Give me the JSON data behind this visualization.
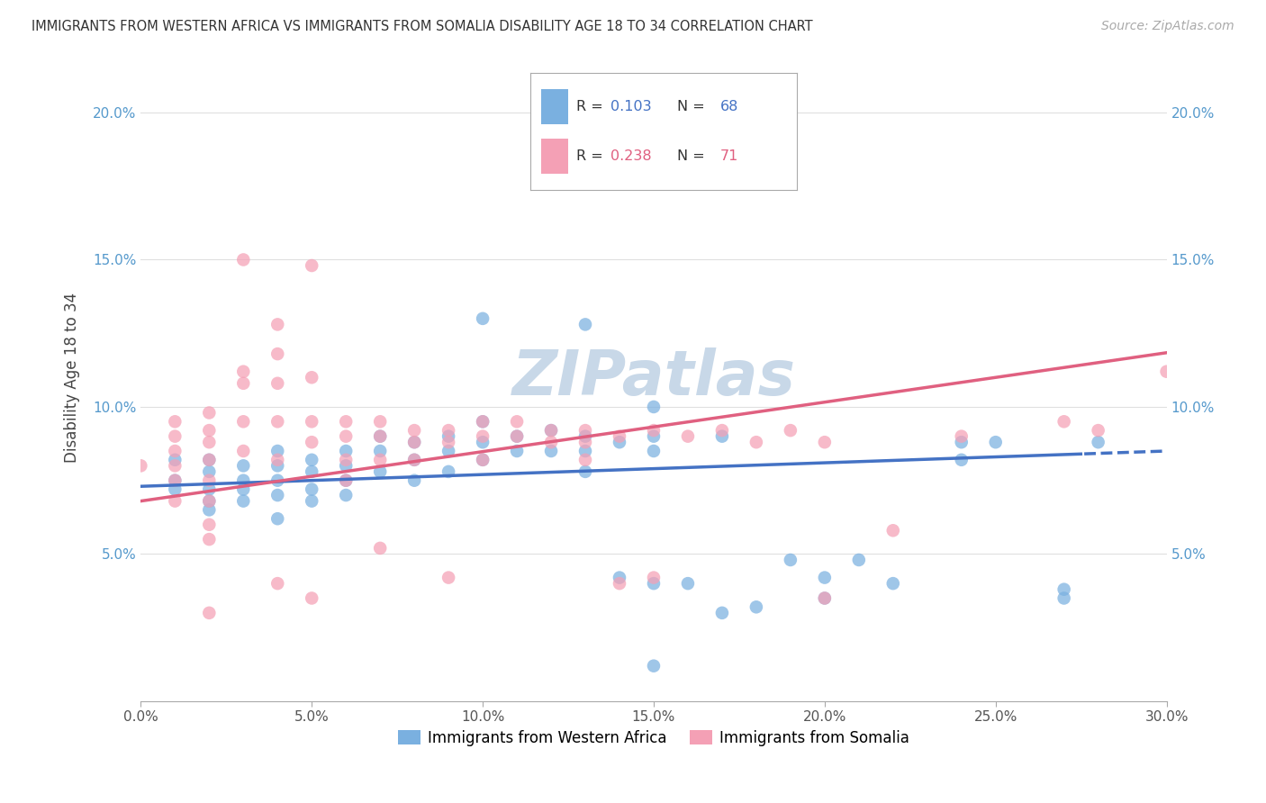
{
  "title": "IMMIGRANTS FROM WESTERN AFRICA VS IMMIGRANTS FROM SOMALIA DISABILITY AGE 18 TO 34 CORRELATION CHART",
  "source": "Source: ZipAtlas.com",
  "ylabel": "Disability Age 18 to 34",
  "xlim": [
    0.0,
    0.3
  ],
  "ylim": [
    0.0,
    0.22
  ],
  "xticks": [
    0.0,
    0.05,
    0.1,
    0.15,
    0.2,
    0.25,
    0.3
  ],
  "yticks": [
    0.0,
    0.05,
    0.1,
    0.15,
    0.2
  ],
  "western_africa_color": "#7ab0e0",
  "somalia_color": "#f4a0b5",
  "western_africa_R": 0.103,
  "western_africa_N": 68,
  "somalia_R": 0.238,
  "somalia_N": 71,
  "line_blue": "#4472c4",
  "line_pink": "#e06080",
  "watermark": "ZIPatlas",
  "watermark_color": "#c8d8e8",
  "background_color": "#ffffff",
  "grid_color": "#e0e0e0",
  "western_africa_x": [
    0.01,
    0.01,
    0.01,
    0.02,
    0.02,
    0.02,
    0.02,
    0.02,
    0.03,
    0.03,
    0.03,
    0.03,
    0.04,
    0.04,
    0.04,
    0.04,
    0.04,
    0.05,
    0.05,
    0.05,
    0.05,
    0.06,
    0.06,
    0.06,
    0.06,
    0.07,
    0.07,
    0.07,
    0.08,
    0.08,
    0.08,
    0.09,
    0.09,
    0.09,
    0.1,
    0.1,
    0.1,
    0.11,
    0.11,
    0.12,
    0.12,
    0.13,
    0.13,
    0.13,
    0.14,
    0.14,
    0.15,
    0.15,
    0.15,
    0.16,
    0.17,
    0.17,
    0.18,
    0.19,
    0.2,
    0.2,
    0.21,
    0.22,
    0.24,
    0.24,
    0.25,
    0.27,
    0.27,
    0.28,
    0.15,
    0.13,
    0.1,
    0.15
  ],
  "western_africa_y": [
    0.075,
    0.082,
    0.072,
    0.078,
    0.082,
    0.072,
    0.068,
    0.065,
    0.08,
    0.075,
    0.072,
    0.068,
    0.085,
    0.08,
    0.075,
    0.07,
    0.062,
    0.082,
    0.078,
    0.072,
    0.068,
    0.085,
    0.08,
    0.075,
    0.07,
    0.09,
    0.085,
    0.078,
    0.088,
    0.082,
    0.075,
    0.09,
    0.085,
    0.078,
    0.095,
    0.088,
    0.082,
    0.09,
    0.085,
    0.092,
    0.085,
    0.09,
    0.085,
    0.078,
    0.088,
    0.042,
    0.09,
    0.085,
    0.04,
    0.04,
    0.09,
    0.03,
    0.032,
    0.048,
    0.042,
    0.035,
    0.048,
    0.04,
    0.088,
    0.082,
    0.088,
    0.035,
    0.038,
    0.088,
    0.1,
    0.128,
    0.13,
    0.012
  ],
  "somalia_x": [
    0.0,
    0.01,
    0.01,
    0.01,
    0.01,
    0.01,
    0.01,
    0.02,
    0.02,
    0.02,
    0.02,
    0.02,
    0.02,
    0.02,
    0.02,
    0.03,
    0.03,
    0.03,
    0.03,
    0.04,
    0.04,
    0.04,
    0.04,
    0.04,
    0.04,
    0.05,
    0.05,
    0.05,
    0.05,
    0.06,
    0.06,
    0.06,
    0.06,
    0.07,
    0.07,
    0.07,
    0.07,
    0.08,
    0.08,
    0.08,
    0.09,
    0.09,
    0.09,
    0.1,
    0.1,
    0.1,
    0.11,
    0.11,
    0.12,
    0.12,
    0.13,
    0.13,
    0.13,
    0.14,
    0.14,
    0.15,
    0.15,
    0.16,
    0.17,
    0.18,
    0.19,
    0.2,
    0.2,
    0.22,
    0.24,
    0.27,
    0.28,
    0.3,
    0.03,
    0.05,
    0.02
  ],
  "somalia_y": [
    0.08,
    0.095,
    0.09,
    0.085,
    0.08,
    0.075,
    0.068,
    0.098,
    0.092,
    0.088,
    0.082,
    0.075,
    0.068,
    0.06,
    0.055,
    0.112,
    0.108,
    0.095,
    0.085,
    0.128,
    0.118,
    0.108,
    0.095,
    0.082,
    0.04,
    0.11,
    0.095,
    0.088,
    0.035,
    0.095,
    0.09,
    0.082,
    0.075,
    0.095,
    0.09,
    0.082,
    0.052,
    0.092,
    0.088,
    0.082,
    0.092,
    0.088,
    0.042,
    0.095,
    0.09,
    0.082,
    0.095,
    0.09,
    0.092,
    0.088,
    0.092,
    0.088,
    0.082,
    0.09,
    0.04,
    0.092,
    0.042,
    0.09,
    0.092,
    0.088,
    0.092,
    0.088,
    0.035,
    0.058,
    0.09,
    0.095,
    0.092,
    0.112,
    0.15,
    0.148,
    0.03
  ]
}
